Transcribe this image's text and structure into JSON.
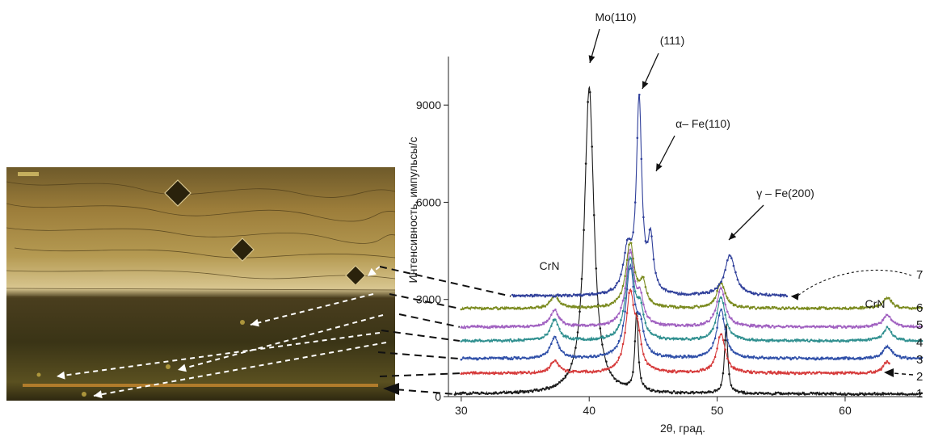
{
  "chart_data": {
    "type": "line",
    "xlabel": "2θ, град.",
    "ylabel": "Интенсивность, импульсы/с",
    "xlim": [
      29,
      66
    ],
    "ylim": [
      0,
      10500
    ],
    "x_ticks": [
      30,
      40,
      50,
      60
    ],
    "y_ticks": [
      0,
      3000,
      6000,
      9000
    ],
    "grid": false,
    "colors": {
      "1": "#1a1a1a",
      "2": "#d63a3a",
      "3": "#2f4fa8",
      "4": "#2f8f8f",
      "5": "#a060c0",
      "6": "#7a8a1e",
      "7": "#2f3f9a"
    },
    "series": [
      {
        "name": "1",
        "start": 29.5,
        "end": 66,
        "baseline": 80,
        "peaks": [
          [
            40.0,
            9450,
            0.45
          ],
          [
            43.7,
            2400,
            0.15
          ],
          [
            50.7,
            2150,
            0.15
          ]
        ]
      },
      {
        "name": "2",
        "start": 30,
        "end": 63.5,
        "baseline": 720,
        "peaks": [
          [
            37.3,
            380,
            0.4
          ],
          [
            43.2,
            2400,
            0.4
          ],
          [
            43.8,
            900,
            0.3
          ],
          [
            50.3,
            1200,
            0.4
          ],
          [
            63.3,
            350,
            0.4
          ]
        ]
      },
      {
        "name": "3",
        "start": 30,
        "end": 66,
        "baseline": 1170,
        "peaks": [
          [
            37.3,
            650,
            0.4
          ],
          [
            43.2,
            2800,
            0.4
          ],
          [
            44.0,
            800,
            0.3
          ],
          [
            50.3,
            1500,
            0.4
          ],
          [
            63.3,
            380,
            0.4
          ]
        ]
      },
      {
        "name": "4",
        "start": 30,
        "end": 66,
        "baseline": 1720,
        "peaks": [
          [
            37.3,
            650,
            0.4
          ],
          [
            43.2,
            2500,
            0.4
          ],
          [
            44.0,
            800,
            0.3
          ],
          [
            50.3,
            1350,
            0.4
          ],
          [
            63.3,
            400,
            0.4
          ]
        ]
      },
      {
        "name": "5",
        "start": 30,
        "end": 66,
        "baseline": 2150,
        "peaks": [
          [
            37.3,
            500,
            0.4
          ],
          [
            43.2,
            2300,
            0.4
          ],
          [
            44.0,
            700,
            0.3
          ],
          [
            50.3,
            1200,
            0.4
          ],
          [
            63.3,
            380,
            0.4
          ]
        ]
      },
      {
        "name": "6",
        "start": 30,
        "end": 66,
        "baseline": 2720,
        "peaks": [
          [
            37.3,
            380,
            0.4
          ],
          [
            43.2,
            2000,
            0.4
          ],
          [
            44.2,
            700,
            0.3
          ],
          [
            50.3,
            800,
            0.4
          ],
          [
            63.3,
            330,
            0.4
          ]
        ]
      },
      {
        "name": "7",
        "start": 34,
        "end": 55.5,
        "baseline": 3100,
        "peaks": [
          [
            43.0,
            1300,
            0.4
          ],
          [
            43.9,
            5900,
            0.25
          ],
          [
            44.8,
            1600,
            0.25
          ],
          [
            51.0,
            1250,
            0.5
          ]
        ]
      }
    ],
    "annotations": [
      {
        "text": "Mo(110)",
        "x": 40.0,
        "y": 9500
      },
      {
        "text": "(111)",
        "x": 44.0,
        "y": 9000
      },
      {
        "text": "α– Fe(110)",
        "x": 44.8,
        "y": 6400
      },
      {
        "text": "γ – Fe(200)",
        "x": 51.0,
        "y": 4400
      },
      {
        "text": "CrN",
        "x": 37.3,
        "y": 3000
      },
      {
        "text": "CrN",
        "x": 63.3,
        "y": 3000
      }
    ],
    "curve_labels": [
      "7",
      "6",
      "5",
      "4",
      "3",
      "2",
      "1"
    ]
  }
}
